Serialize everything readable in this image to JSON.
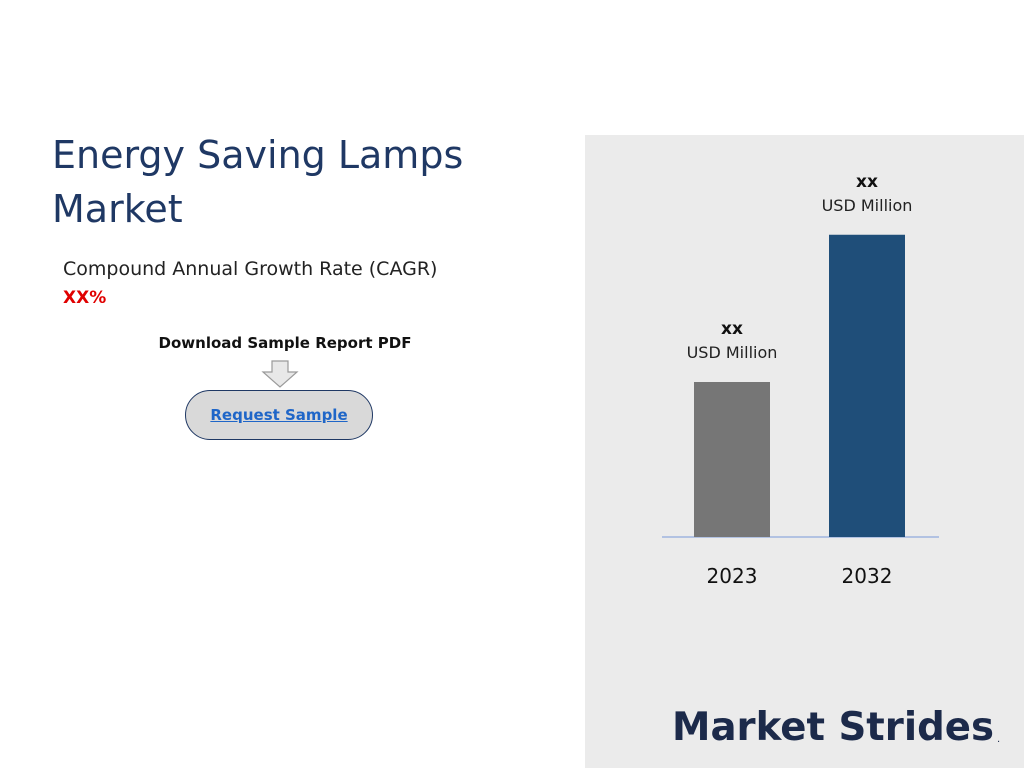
{
  "title": "Energy Saving Lamps Market",
  "cagr": {
    "label": "Compound Annual Growth Rate (CAGR)",
    "value": "XX%"
  },
  "download": {
    "label": "Download Sample Report PDF",
    "button_label": "Request Sample"
  },
  "logo": {
    "text": "Market Strides",
    "mark": "."
  },
  "colors": {
    "title": "#1f3864",
    "cagr_value": "#e00000",
    "bar_2023": "#767676",
    "bar_2032": "#1f4e79",
    "panel_bg": "#ebebeb",
    "link": "#1f66c8"
  },
  "chart_data": {
    "type": "bar",
    "categories": [
      "2023",
      "2032"
    ],
    "values": [
      1,
      1.95
    ],
    "data_labels": [
      {
        "value": "xx",
        "unit": "USD Million"
      },
      {
        "value": "xx",
        "unit": "USD Million"
      }
    ],
    "colors": [
      "#767676",
      "#1f4e79"
    ],
    "ylim": [
      0,
      2.1
    ],
    "grid": false,
    "legend": "none"
  }
}
